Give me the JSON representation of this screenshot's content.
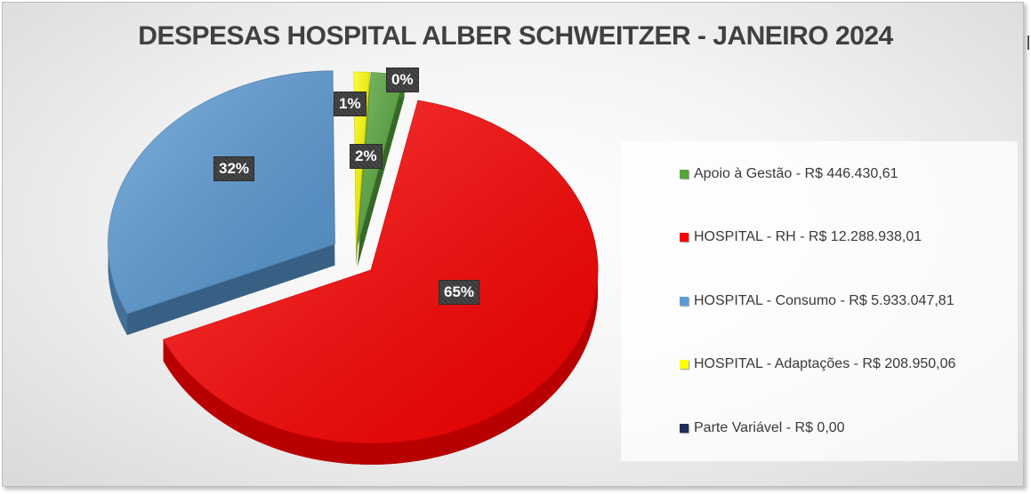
{
  "chart_data": {
    "type": "pie",
    "title": "DESPESAS HOSPITAL ALBER SCHWEITZER - JANEIRO 2024",
    "legend_position": "right",
    "slices": [
      {
        "name": "Apoio à Gestão",
        "legend": "Apoio à Gestão - R$ 446.430,61",
        "value": 446430.61,
        "percent_label": "2%",
        "color": "#55a73b"
      },
      {
        "name": "HOSPITAL - RH",
        "legend": "HOSPITAL - RH - R$ 12.288.938,01",
        "value": 12288938.01,
        "percent_label": "65%",
        "color": "#ff0000"
      },
      {
        "name": "HOSPITAL - Consumo",
        "legend": "HOSPITAL - Consumo - R$ 5.933.047,81",
        "value": 5933047.81,
        "percent_label": "32%",
        "color": "#5b9bd5"
      },
      {
        "name": "HOSPITAL - Adaptações",
        "legend": "HOSPITAL - Adaptações - R$ 208.950,06",
        "value": 208950.06,
        "percent_label": "1%",
        "color": "#ffff00"
      },
      {
        "name": "Parte Variável",
        "legend": "Parte Variável - R$ 0,00",
        "value": 0,
        "percent_label": "0%",
        "color": "#1f2d5a"
      }
    ]
  }
}
